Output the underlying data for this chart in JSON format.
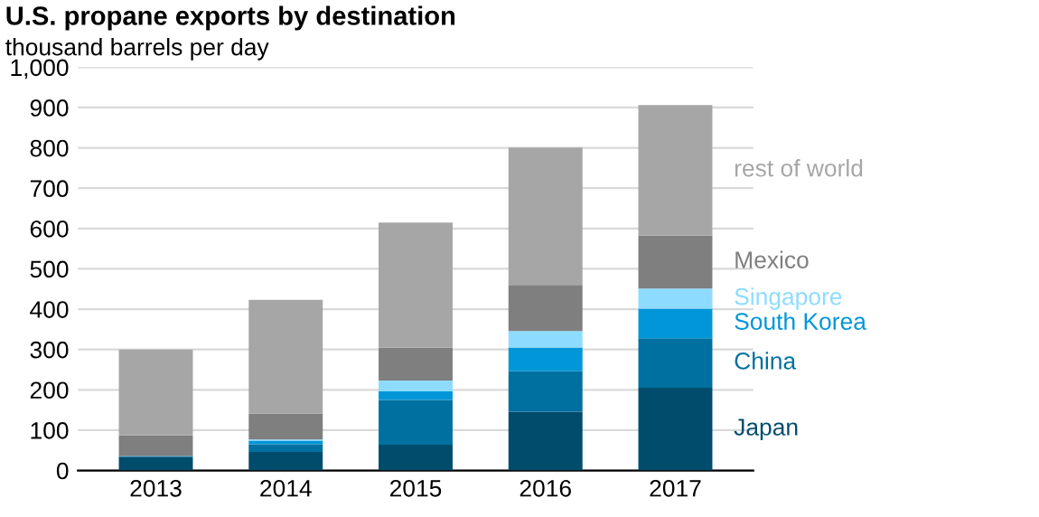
{
  "chart_data": {
    "type": "bar",
    "title": "U.S. propane exports by destination",
    "subtitle": "thousand barrels per day",
    "categories": [
      "2013",
      "2014",
      "2015",
      "2016",
      "2017"
    ],
    "stacked": true,
    "series": [
      {
        "name": "Japan",
        "color": "#004c6d",
        "values": [
          33,
          46,
          64,
          146,
          205
        ]
      },
      {
        "name": "China",
        "color": "#0070a0",
        "values": [
          3,
          19,
          111,
          100,
          123
        ]
      },
      {
        "name": "South Korea",
        "color": "#0096d7",
        "values": [
          0,
          9,
          21,
          59,
          73
        ]
      },
      {
        "name": "Singapore",
        "color": "#8ddcff",
        "values": [
          0,
          3,
          27,
          41,
          50
        ]
      },
      {
        "name": "Mexico",
        "color": "#7f7f7f",
        "values": [
          51,
          64,
          82,
          114,
          132
        ]
      },
      {
        "name": "rest of world",
        "color": "#a6a6a6",
        "values": [
          213,
          282,
          310,
          341,
          323
        ]
      }
    ],
    "ylim": [
      0,
      1000
    ],
    "yticks": [
      0,
      100,
      200,
      300,
      400,
      500,
      600,
      700,
      800,
      900,
      {
        "value": 1000,
        "label": "1,000"
      }
    ],
    "grid": "y"
  }
}
